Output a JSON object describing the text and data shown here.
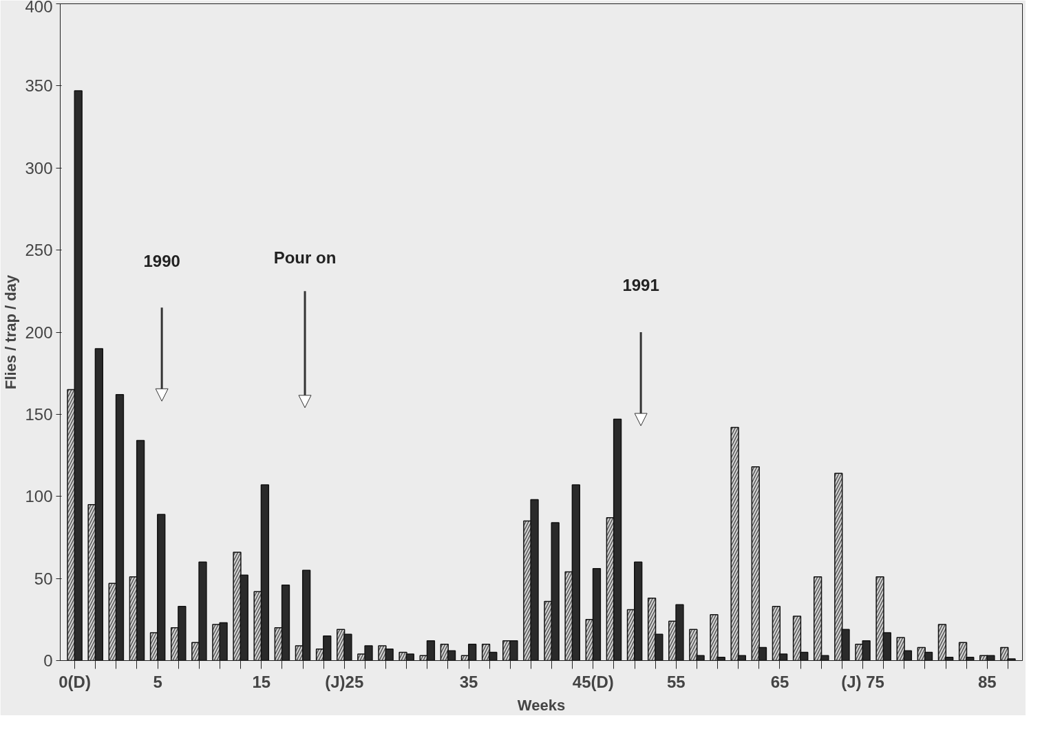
{
  "chart_data": {
    "type": "bar",
    "xlabel": "Weeks",
    "ylabel": "Flies / trap / day",
    "categories": [
      "0(D)",
      null,
      null,
      null,
      "5",
      null,
      null,
      null,
      null,
      "15",
      null,
      null,
      null,
      "(J)25",
      null,
      null,
      null,
      null,
      null,
      "35",
      null,
      null,
      null,
      null,
      null,
      "45(D)",
      null,
      null,
      null,
      "55",
      null,
      null,
      null,
      null,
      "65",
      null,
      null,
      null,
      "(J) 75",
      null,
      null,
      null,
      null,
      null,
      "85",
      null
    ],
    "series": [
      {
        "color": "#d4d4d4",
        "values": [
          165,
          95,
          47,
          51,
          17,
          20,
          11,
          22,
          66,
          42,
          20,
          9,
          7,
          19,
          4,
          9,
          5,
          3,
          10,
          3,
          10,
          12,
          85,
          36,
          54,
          25,
          87,
          31,
          38,
          24,
          19,
          28,
          142,
          118,
          33,
          27,
          51,
          114,
          10,
          51,
          14,
          8,
          22,
          11,
          3,
          8
        ]
      },
      {
        "color": "#2a2a2a",
        "values": [
          347,
          190,
          162,
          134,
          89,
          33,
          60,
          23,
          52,
          107,
          46,
          55,
          15,
          16,
          9,
          7,
          4,
          12,
          6,
          10,
          5,
          12,
          98,
          84,
          107,
          56,
          147,
          60,
          16,
          34,
          3,
          2,
          3,
          8,
          4,
          5,
          3,
          19,
          12,
          17,
          6,
          5,
          2,
          2,
          3,
          1
        ]
      }
    ],
    "ylim": [
      0,
      400
    ],
    "yticks": [
      0,
      50,
      100,
      150,
      200,
      250,
      300,
      350,
      400
    ],
    "annotations": [
      "1990",
      "Pour on",
      "1991"
    ]
  }
}
